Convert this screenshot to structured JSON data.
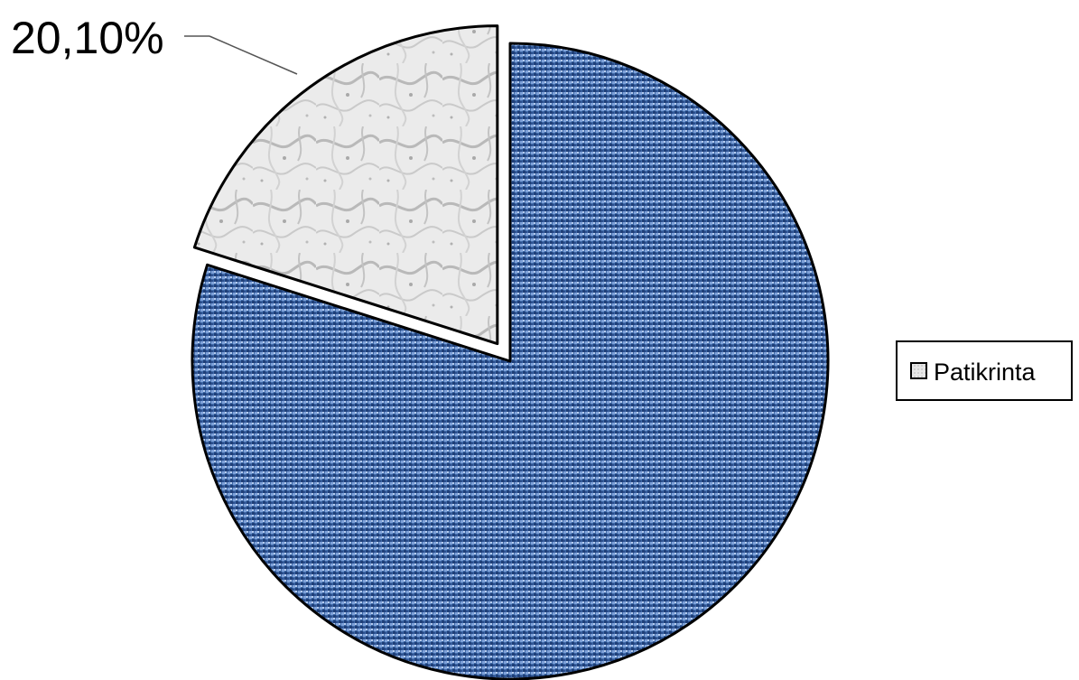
{
  "chart_data": {
    "type": "pie",
    "title": "",
    "slices": [
      {
        "label": "",
        "value": 79.9,
        "color": "#3f6aa8",
        "exploded": false
      },
      {
        "label": "Patikrinta",
        "value": 20.1,
        "display": "20,10%",
        "color": "#e3e3e3",
        "exploded": true
      }
    ],
    "legend": {
      "placement": "right",
      "entries": [
        {
          "label": "Patikrinta",
          "color": "#e3e3e3"
        }
      ]
    }
  }
}
